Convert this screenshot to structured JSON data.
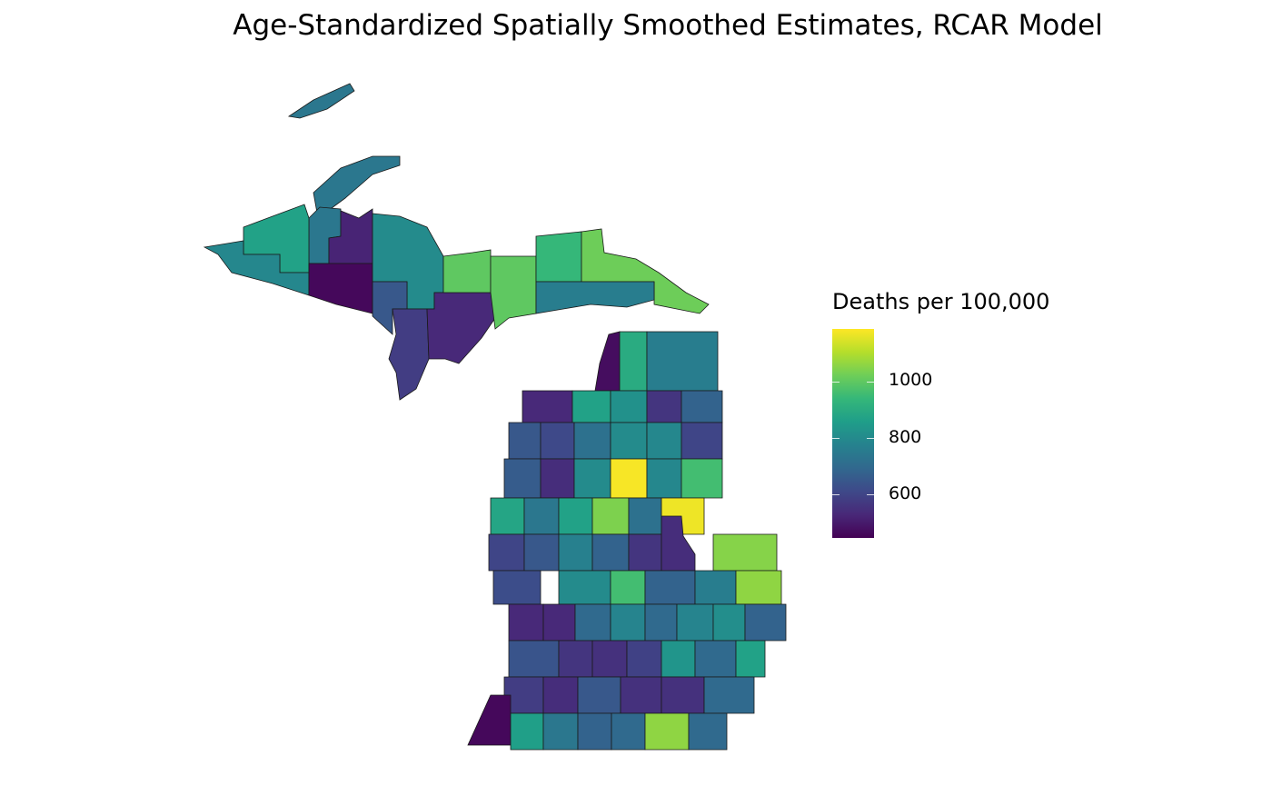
{
  "chart_data": {
    "type": "choropleth",
    "title": "Age-Standardized Spatially Smoothed Estimates, RCAR Model",
    "legend": {
      "title": "Deaths per 100,000",
      "placement": "right",
      "range": [
        445,
        1187
      ],
      "ticks": [
        600,
        800,
        1000
      ],
      "tick_labels": [
        "600",
        "800",
        "1000"
      ],
      "palette": "viridis",
      "colors": [
        "#440154",
        "#3b528b",
        "#21908c",
        "#5dc863",
        "#fde725"
      ]
    },
    "values": {
      "upper_peninsula": [
        740,
        740,
        740,
        870,
        790,
        520,
        460,
        800,
        650,
        580,
        530,
        1000,
        1000,
        940,
        1020,
        760
      ],
      "lower_peninsula": [
        470,
        900,
        760,
        530,
        870,
        820,
        560,
        680,
        650,
        610,
        720,
        800,
        790,
        600,
        660,
        540,
        800,
        1180,
        790,
        960,
        880,
        740,
        870,
        1040,
        720,
        1170,
        600,
        650,
        770,
        680,
        560,
        540,
        1050,
        620,
        800,
        960,
        680,
        760,
        1060,
        530,
        530,
        700,
        780,
        700,
        780,
        810,
        680,
        640,
        560,
        550,
        590,
        830,
        700,
        870,
        580,
        540,
        650,
        550,
        550,
        700,
        460,
        860,
        740,
        680,
        700,
        1060,
        700
      ]
    }
  }
}
